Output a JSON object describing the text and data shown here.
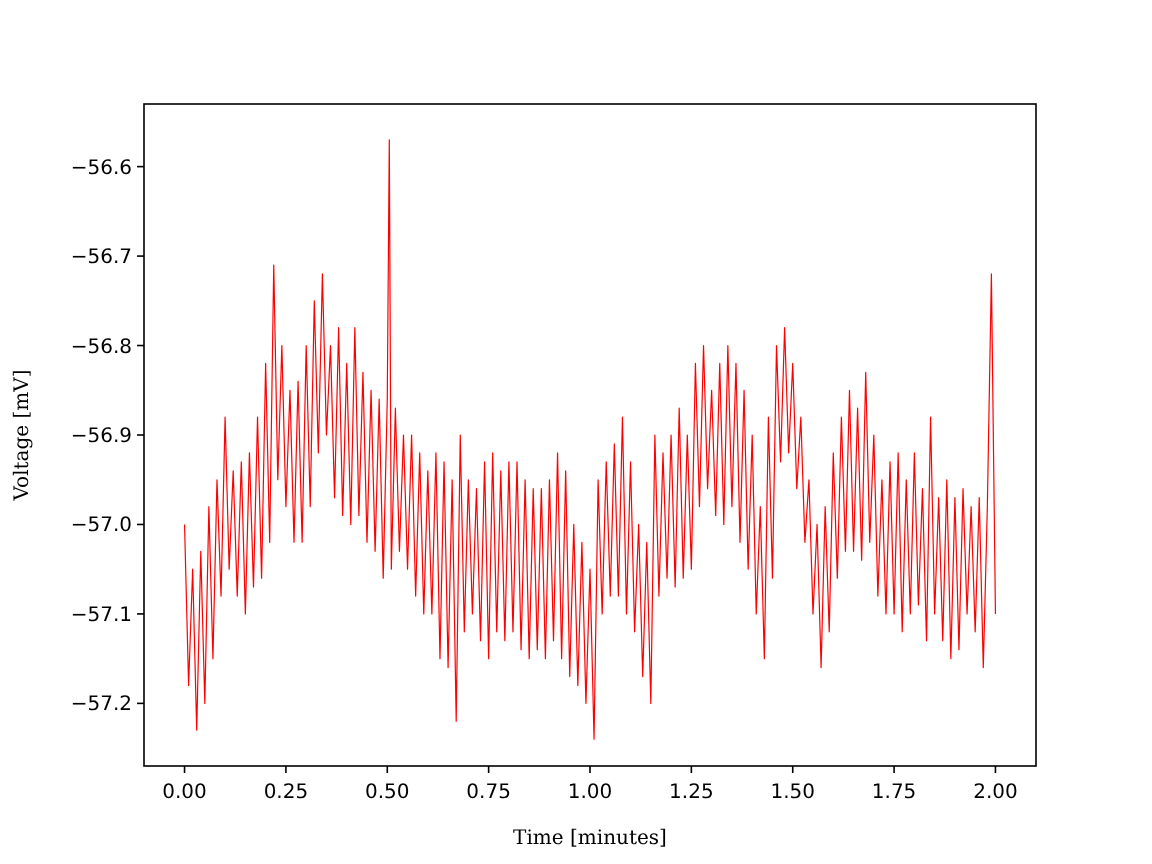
{
  "chart_data": {
    "type": "line",
    "xlabel": "Time [minutes]",
    "ylabel": "Voltage [mV]",
    "xlim": [
      -0.1,
      2.1
    ],
    "xticks": [
      {
        "value": 0,
        "label": "0.00"
      },
      {
        "value": 0.25,
        "label": "0.25"
      },
      {
        "value": 0.5,
        "label": "0.50"
      },
      {
        "value": 0.75,
        "label": "0.75"
      },
      {
        "value": 1,
        "label": "1.00"
      },
      {
        "value": 1.25,
        "label": "1.25"
      },
      {
        "value": 1.5,
        "label": "1.50"
      },
      {
        "value": 1.75,
        "label": "1.75"
      },
      {
        "value": 2,
        "label": "2.00"
      }
    ],
    "ylim": [
      -57.27,
      -56.53
    ],
    "yticks": [
      {
        "value": -57.2,
        "label": "−57.2"
      },
      {
        "value": -57.1,
        "label": "−57.1"
      },
      {
        "value": -57.0,
        "label": "−57.0"
      },
      {
        "value": -56.9,
        "label": "−56.9"
      },
      {
        "value": -56.8,
        "label": "−56.8"
      },
      {
        "value": -56.7,
        "label": "−56.7"
      },
      {
        "value": -56.6,
        "label": "−56.6"
      }
    ],
    "grid": false,
    "marker": "none",
    "line_style": "solid",
    "series": [
      {
        "color": "#ff0000",
        "x": [
          0,
          0.01,
          0.02,
          0.03,
          0.04,
          0.05,
          0.06,
          0.07,
          0.08,
          0.09,
          0.1,
          0.11,
          0.12,
          0.13,
          0.14,
          0.15,
          0.16,
          0.17,
          0.18,
          0.19,
          0.2,
          0.21,
          0.22,
          0.23,
          0.24,
          0.25,
          0.26,
          0.27,
          0.28,
          0.29,
          0.3,
          0.31,
          0.32,
          0.33,
          0.34,
          0.35,
          0.36,
          0.37,
          0.38,
          0.39,
          0.4,
          0.41,
          0.42,
          0.43,
          0.44,
          0.45,
          0.46,
          0.47,
          0.48,
          0.49,
          0.5,
          0.505,
          0.51,
          0.52,
          0.53,
          0.54,
          0.55,
          0.56,
          0.57,
          0.58,
          0.59,
          0.6,
          0.61,
          0.62,
          0.63,
          0.64,
          0.65,
          0.66,
          0.67,
          0.68,
          0.69,
          0.7,
          0.71,
          0.72,
          0.73,
          0.74,
          0.75,
          0.76,
          0.77,
          0.78,
          0.79,
          0.8,
          0.81,
          0.82,
          0.83,
          0.84,
          0.85,
          0.86,
          0.87,
          0.88,
          0.89,
          0.9,
          0.91,
          0.92,
          0.93,
          0.94,
          0.95,
          0.96,
          0.97,
          0.98,
          0.99,
          1,
          1.01,
          1.02,
          1.03,
          1.04,
          1.05,
          1.06,
          1.07,
          1.08,
          1.09,
          1.1,
          1.11,
          1.12,
          1.13,
          1.14,
          1.15,
          1.16,
          1.17,
          1.18,
          1.19,
          1.2,
          1.21,
          1.22,
          1.23,
          1.24,
          1.25,
          1.26,
          1.27,
          1.28,
          1.29,
          1.3,
          1.31,
          1.32,
          1.33,
          1.34,
          1.35,
          1.36,
          1.37,
          1.38,
          1.39,
          1.4,
          1.41,
          1.42,
          1.43,
          1.44,
          1.45,
          1.46,
          1.47,
          1.48,
          1.49,
          1.5,
          1.51,
          1.52,
          1.53,
          1.54,
          1.55,
          1.56,
          1.57,
          1.58,
          1.59,
          1.6,
          1.61,
          1.62,
          1.63,
          1.64,
          1.65,
          1.66,
          1.67,
          1.68,
          1.69,
          1.7,
          1.71,
          1.72,
          1.73,
          1.74,
          1.75,
          1.76,
          1.77,
          1.78,
          1.79,
          1.8,
          1.81,
          1.82,
          1.83,
          1.84,
          1.85,
          1.86,
          1.87,
          1.88,
          1.89,
          1.9,
          1.91,
          1.92,
          1.93,
          1.94,
          1.95,
          1.96,
          1.97,
          1.98,
          1.99,
          2
        ],
        "values": [
          -57.0,
          -57.18,
          -57.05,
          -57.23,
          -57.03,
          -57.2,
          -56.98,
          -57.15,
          -56.95,
          -57.08,
          -56.88,
          -57.05,
          -56.94,
          -57.08,
          -56.93,
          -57.1,
          -56.92,
          -57.07,
          -56.88,
          -57.06,
          -56.82,
          -57.02,
          -56.71,
          -56.95,
          -56.8,
          -56.98,
          -56.85,
          -57.02,
          -56.84,
          -57.02,
          -56.8,
          -56.98,
          -56.75,
          -56.92,
          -56.72,
          -56.9,
          -56.8,
          -56.97,
          -56.78,
          -56.99,
          -56.82,
          -57.0,
          -56.78,
          -56.99,
          -56.83,
          -57.02,
          -56.85,
          -57.03,
          -56.86,
          -57.06,
          -56.86,
          -56.57,
          -57.05,
          -56.87,
          -57.03,
          -56.9,
          -57.05,
          -56.9,
          -57.08,
          -56.92,
          -57.1,
          -56.94,
          -57.1,
          -56.92,
          -57.15,
          -56.93,
          -57.16,
          -56.95,
          -57.22,
          -56.9,
          -57.12,
          -56.95,
          -57.1,
          -56.96,
          -57.13,
          -56.93,
          -57.15,
          -56.92,
          -57.12,
          -56.94,
          -57.13,
          -56.93,
          -57.12,
          -56.93,
          -57.14,
          -56.95,
          -57.15,
          -56.96,
          -57.14,
          -56.96,
          -57.15,
          -56.95,
          -57.13,
          -56.92,
          -57.15,
          -56.94,
          -57.17,
          -57.0,
          -57.18,
          -57.02,
          -57.2,
          -57.05,
          -57.24,
          -56.95,
          -57.1,
          -56.93,
          -57.08,
          -56.91,
          -57.08,
          -56.88,
          -57.1,
          -56.93,
          -57.12,
          -57.0,
          -57.17,
          -57.02,
          -57.2,
          -56.9,
          -57.08,
          -56.92,
          -57.06,
          -56.9,
          -57.07,
          -56.87,
          -57.06,
          -56.9,
          -57.05,
          -56.82,
          -56.98,
          -56.8,
          -56.96,
          -56.85,
          -56.99,
          -56.82,
          -57.0,
          -56.8,
          -56.98,
          -56.82,
          -57.02,
          -56.85,
          -57.05,
          -56.9,
          -57.1,
          -56.98,
          -57.15,
          -56.88,
          -57.06,
          -56.8,
          -56.93,
          -56.78,
          -56.92,
          -56.82,
          -56.96,
          -56.88,
          -57.02,
          -56.95,
          -57.1,
          -57.0,
          -57.16,
          -56.98,
          -57.12,
          -56.92,
          -57.06,
          -56.88,
          -57.03,
          -56.85,
          -57.03,
          -56.87,
          -57.04,
          -56.83,
          -57.02,
          -56.9,
          -57.08,
          -56.95,
          -57.1,
          -56.93,
          -57.1,
          -56.92,
          -57.12,
          -56.95,
          -57.1,
          -56.92,
          -57.09,
          -56.96,
          -57.13,
          -56.88,
          -57.1,
          -56.97,
          -57.13,
          -56.95,
          -57.15,
          -56.97,
          -57.14,
          -56.96,
          -57.1,
          -56.98,
          -57.12,
          -56.97,
          -57.16,
          -56.98,
          -56.72,
          -57.1
        ]
      }
    ]
  }
}
